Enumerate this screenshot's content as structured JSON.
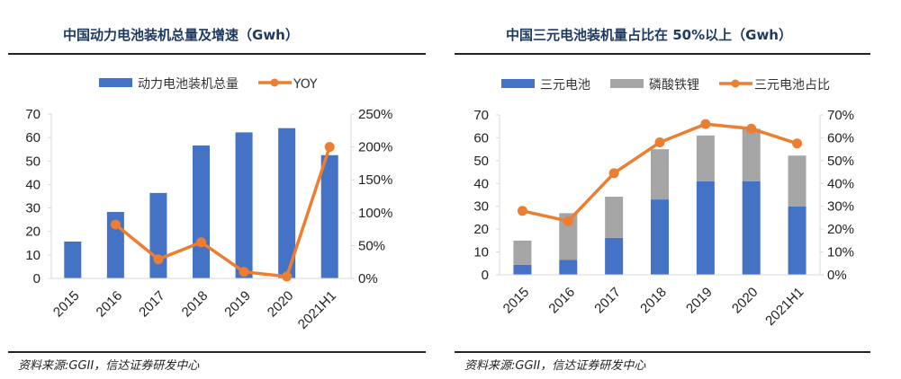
{
  "chart_data": [
    {
      "type": "bar+line",
      "title": "中国动力电池装机总量及增速（Gwh）",
      "categories": [
        "2015",
        "2016",
        "2017",
        "2018",
        "2019",
        "2020",
        "2021H1"
      ],
      "series": [
        {
          "name": "动力电池装机总量",
          "type": "bar",
          "axis": "left",
          "color": "#4472c4",
          "values": [
            15.7,
            28.3,
            36.4,
            56.6,
            62.2,
            64.0,
            52.5
          ]
        },
        {
          "name": "YOY",
          "type": "line",
          "axis": "right",
          "color": "#ed7d31",
          "values": [
            null,
            0.82,
            0.29,
            0.55,
            0.1,
            0.03,
            2.0
          ]
        }
      ],
      "ylim": [
        0,
        70
      ],
      "yticks": [
        "0",
        "10",
        "20",
        "30",
        "40",
        "50",
        "60",
        "70"
      ],
      "y2lim": [
        0,
        2.5
      ],
      "y2ticks": [
        "0%",
        "50%",
        "100%",
        "150%",
        "200%",
        "250%"
      ],
      "legend": "top",
      "grid": false,
      "source": "资料来源:GGII，信达证券研发中心"
    },
    {
      "type": "stacked-bar+line",
      "title": "中国三元电池装机量占比在 50%以上（Gwh）",
      "categories": [
        "2015",
        "2016",
        "2017",
        "2018",
        "2019",
        "2020",
        "2021H1"
      ],
      "series": [
        {
          "name": "三元电池",
          "type": "bar",
          "axis": "left",
          "color": "#4472c4",
          "values": [
            4.4,
            6.5,
            16.2,
            33.0,
            41.0,
            41.0,
            30.0
          ]
        },
        {
          "name": "磷酸铁锂",
          "type": "bar",
          "axis": "left",
          "color": "#a5a5a5",
          "values": [
            10.6,
            20.5,
            18.0,
            22.0,
            20.0,
            23.0,
            22.2
          ]
        },
        {
          "name": "三元电池占比",
          "type": "line",
          "axis": "right",
          "color": "#ed7d31",
          "values": [
            0.28,
            0.235,
            0.445,
            0.58,
            0.66,
            0.64,
            0.575
          ]
        }
      ],
      "ylim": [
        0,
        70
      ],
      "yticks": [
        "0",
        "10",
        "20",
        "30",
        "40",
        "50",
        "60",
        "70"
      ],
      "y2lim": [
        0,
        0.7
      ],
      "y2ticks": [
        "0%",
        "10%",
        "20%",
        "30%",
        "40%",
        "50%",
        "60%",
        "70%"
      ],
      "legend": "top",
      "grid": false,
      "source": "资料来源:GGII，信达证券研发中心"
    }
  ]
}
